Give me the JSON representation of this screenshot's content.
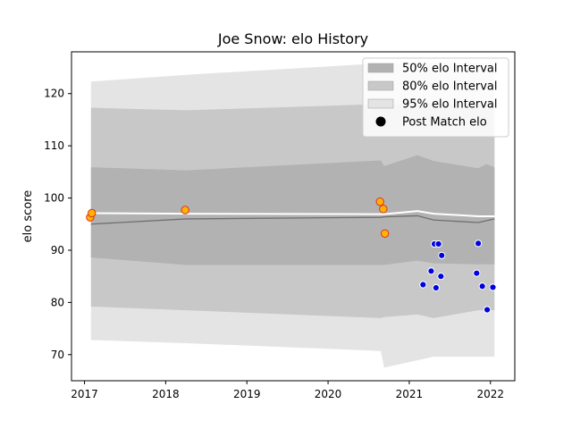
{
  "chart_data": {
    "type": "area",
    "title": "Joe Snow: elo History",
    "xlabel": "",
    "ylabel": "elo score",
    "xlim": [
      2016.84,
      2022.3
    ],
    "ylim": [
      65,
      128
    ],
    "x_ticks": [
      2017,
      2018,
      2019,
      2020,
      2021,
      2022
    ],
    "x_tick_labels": [
      "2017",
      "2018",
      "2019",
      "2020",
      "2021",
      "2022"
    ],
    "y_ticks": [
      70,
      80,
      90,
      100,
      110,
      120
    ],
    "y_tick_labels": [
      "70",
      "80",
      "90",
      "100",
      "110",
      "120"
    ],
    "grid": false,
    "legend": {
      "placement": "top-right",
      "entries": [
        "50% elo Interval",
        "80% elo Interval",
        "95% elo Interval",
        "Post Match elo"
      ]
    },
    "bands": [
      {
        "name": "95% elo Interval",
        "color": "#e4e4e4",
        "x": [
          2017.08,
          2018.25,
          2020.65,
          2020.69,
          2021.3,
          2021.85,
          2021.9,
          2022.05
        ],
        "upper": [
          122.3,
          123.6,
          125.8,
          125.8,
          125.8,
          125.8,
          125.8,
          125.8
        ],
        "lower": [
          72.8,
          72.2,
          70.7,
          67.5,
          69.6,
          69.6,
          69.6,
          69.6
        ]
      },
      {
        "name": "80% elo Interval",
        "color": "#c8c8c8",
        "x": [
          2017.08,
          2018.25,
          2020.65,
          2020.69,
          2021.1,
          2021.3,
          2021.85,
          2022.05
        ],
        "upper": [
          117.3,
          116.8,
          118.0,
          117.9,
          117.9,
          117.9,
          117.9,
          117.9
        ],
        "lower": [
          79.2,
          78.5,
          77.0,
          77.2,
          77.7,
          77.0,
          78.5,
          78.5
        ]
      },
      {
        "name": "50% elo Interval",
        "color": "#b2b2b2",
        "x": [
          2017.08,
          2018.25,
          2020.65,
          2020.69,
          2021.1,
          2021.3,
          2021.85,
          2021.95,
          2022.05
        ],
        "upper": [
          105.9,
          105.3,
          107.2,
          106.1,
          108.2,
          107.1,
          105.7,
          106.5,
          105.9
        ],
        "lower": [
          88.6,
          87.2,
          87.2,
          87.2,
          88.0,
          87.5,
          87.3,
          87.3,
          87.3
        ]
      }
    ],
    "lines": [
      {
        "name": "dark trend",
        "color": "#6f6f6f",
        "x": [
          2017.08,
          2018.25,
          2020.65,
          2020.69,
          2021.1,
          2021.3,
          2021.85,
          2022.05
        ],
        "y": [
          95.0,
          96.0,
          96.3,
          96.4,
          96.6,
          95.8,
          95.3,
          96.0
        ]
      },
      {
        "name": "white trend",
        "color": "#ffffff",
        "x": [
          2017.08,
          2018.25,
          2020.65,
          2020.69,
          2021.1,
          2021.3,
          2021.85,
          2022.05
        ],
        "y": [
          97.1,
          97.0,
          96.9,
          96.9,
          97.5,
          97.0,
          96.5,
          96.5
        ]
      }
    ],
    "points": [
      {
        "x": 2017.07,
        "y": 96.3,
        "kind": "orange"
      },
      {
        "x": 2017.09,
        "y": 97.1,
        "kind": "orange"
      },
      {
        "x": 2018.24,
        "y": 97.7,
        "kind": "orange"
      },
      {
        "x": 2020.64,
        "y": 99.3,
        "kind": "orange"
      },
      {
        "x": 2020.68,
        "y": 97.9,
        "kind": "orange"
      },
      {
        "x": 2020.7,
        "y": 93.2,
        "kind": "orange"
      },
      {
        "x": 2021.17,
        "y": 83.4,
        "kind": "blue"
      },
      {
        "x": 2021.27,
        "y": 86.0,
        "kind": "blue"
      },
      {
        "x": 2021.31,
        "y": 91.2,
        "kind": "blue"
      },
      {
        "x": 2021.33,
        "y": 82.8,
        "kind": "blue"
      },
      {
        "x": 2021.36,
        "y": 91.2,
        "kind": "blue"
      },
      {
        "x": 2021.39,
        "y": 85.0,
        "kind": "blue"
      },
      {
        "x": 2021.4,
        "y": 89.0,
        "kind": "blue"
      },
      {
        "x": 2021.83,
        "y": 85.6,
        "kind": "blue"
      },
      {
        "x": 2021.85,
        "y": 91.3,
        "kind": "blue"
      },
      {
        "x": 2021.9,
        "y": 83.1,
        "kind": "blue"
      },
      {
        "x": 2021.96,
        "y": 78.6,
        "kind": "blue"
      },
      {
        "x": 2022.03,
        "y": 82.9,
        "kind": "blue"
      }
    ],
    "colors": {
      "orange_fill": "#ffb400",
      "orange_edge": "#e0301e",
      "blue_fill": "#0000e0",
      "blue_edge": "#ffffff",
      "legend_marker": "#000000"
    }
  }
}
